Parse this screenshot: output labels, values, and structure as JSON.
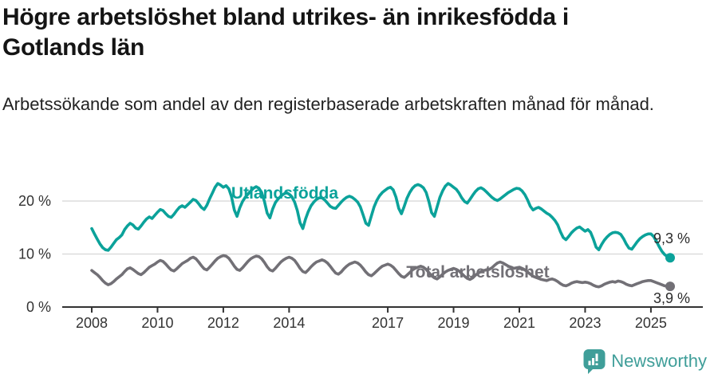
{
  "chart_data": {
    "type": "line",
    "title": "Högre arbetslöshet bland utrikes- än inrikesfödda i Gotlands län",
    "subtitle": "Arbetssökande som andel av den registerbaserade arbetskraften månad för månad.",
    "frequency": "monthly",
    "x_start": "2008-01",
    "x_end": "2025-08",
    "xlim_years": [
      2008,
      2025.67
    ],
    "ylim": [
      0,
      24
    ],
    "grid": "horizontal-light",
    "legend": "inline-series-labels",
    "yticks": [
      {
        "v": 0,
        "label": "0 %"
      },
      {
        "v": 10,
        "label": "10 %"
      },
      {
        "v": 20,
        "label": "20 %"
      }
    ],
    "xticks": [
      {
        "v": 2008,
        "label": "2008"
      },
      {
        "v": 2010,
        "label": "2010"
      },
      {
        "v": 2012,
        "label": "2012"
      },
      {
        "v": 2014,
        "label": "2014"
      },
      {
        "v": 2017,
        "label": "2017"
      },
      {
        "v": 2019,
        "label": "2019"
      },
      {
        "v": 2021,
        "label": "2021"
      },
      {
        "v": 2023,
        "label": "2023"
      },
      {
        "v": 2025,
        "label": "2025"
      }
    ],
    "series": [
      {
        "name": "Utlandsfödda",
        "color": "#0ba29a",
        "end_value": 9.3,
        "end_label": "9,3 %",
        "values": [
          14.8,
          13.8,
          12.8,
          11.9,
          11.2,
          10.8,
          10.7,
          11.3,
          12.0,
          12.7,
          13.1,
          13.6,
          14.6,
          15.3,
          15.8,
          15.5,
          14.9,
          14.7,
          15.3,
          16.0,
          16.6,
          17.0,
          16.7,
          17.3,
          17.9,
          18.4,
          18.2,
          17.6,
          17.1,
          16.9,
          17.5,
          18.2,
          18.8,
          19.1,
          18.8,
          19.3,
          19.8,
          20.3,
          20.1,
          19.5,
          18.8,
          18.4,
          19.2,
          20.4,
          21.5,
          22.6,
          23.3,
          23.0,
          22.6,
          22.9,
          22.3,
          20.8,
          18.3,
          17.1,
          18.7,
          19.9,
          20.7,
          21.3,
          21.9,
          22.4,
          22.7,
          22.4,
          21.6,
          19.9,
          17.7,
          16.8,
          18.5,
          19.7,
          20.4,
          20.9,
          21.3,
          21.6,
          21.3,
          20.8,
          19.8,
          18.2,
          15.9,
          14.8,
          16.6,
          18.0,
          19.1,
          19.8,
          20.3,
          20.6,
          20.6,
          20.2,
          19.6,
          19.0,
          18.7,
          18.6,
          19.2,
          19.8,
          20.3,
          20.7,
          20.9,
          20.7,
          20.3,
          19.8,
          18.9,
          17.4,
          15.8,
          15.4,
          17.2,
          18.9,
          20.1,
          21.0,
          21.6,
          22.0,
          22.4,
          22.6,
          22.1,
          20.7,
          18.6,
          17.6,
          19.0,
          20.5,
          21.6,
          22.4,
          22.9,
          23.1,
          22.9,
          22.5,
          21.6,
          19.9,
          17.8,
          17.1,
          18.9,
          20.7,
          21.9,
          22.8,
          23.3,
          23.0,
          22.6,
          22.2,
          21.5,
          20.6,
          19.9,
          19.6,
          20.3,
          21.1,
          21.8,
          22.3,
          22.5,
          22.2,
          21.7,
          21.2,
          20.7,
          20.3,
          20.1,
          20.4,
          20.8,
          21.2,
          21.6,
          21.9,
          22.2,
          22.4,
          22.3,
          21.9,
          21.2,
          20.2,
          19.0,
          18.3,
          18.6,
          18.8,
          18.5,
          18.1,
          17.7,
          17.4,
          16.9,
          16.3,
          15.5,
          14.2,
          13.1,
          12.7,
          13.3,
          14.0,
          14.5,
          14.9,
          15.1,
          14.7,
          14.3,
          14.6,
          14.1,
          12.8,
          11.3,
          10.8,
          11.8,
          12.6,
          13.2,
          13.7,
          14.0,
          14.1,
          14.0,
          13.7,
          12.9,
          11.9,
          11.1,
          10.9,
          11.6,
          12.3,
          12.9,
          13.3,
          13.6,
          13.8,
          13.8,
          13.3,
          12.4,
          11.4,
          10.5,
          9.9,
          9.5,
          9.3
        ]
      },
      {
        "name": "Total arbetslöshet",
        "color": "#727076",
        "end_value": 3.9,
        "end_label": "3,9 %",
        "values": [
          6.9,
          6.5,
          6.1,
          5.6,
          5.0,
          4.5,
          4.2,
          4.4,
          4.8,
          5.3,
          5.7,
          6.1,
          6.7,
          7.2,
          7.4,
          7.1,
          6.7,
          6.3,
          6.1,
          6.5,
          7.0,
          7.5,
          7.8,
          8.1,
          8.5,
          8.8,
          8.6,
          8.1,
          7.5,
          7.0,
          6.8,
          7.2,
          7.7,
          8.2,
          8.5,
          8.8,
          9.2,
          9.4,
          9.1,
          8.5,
          7.8,
          7.2,
          7.0,
          7.5,
          8.1,
          8.7,
          9.2,
          9.5,
          9.7,
          9.6,
          9.2,
          8.5,
          7.7,
          7.1,
          6.9,
          7.4,
          8.0,
          8.6,
          9.1,
          9.4,
          9.6,
          9.5,
          9.1,
          8.4,
          7.6,
          7.0,
          6.8,
          7.3,
          7.9,
          8.5,
          8.9,
          9.2,
          9.4,
          9.2,
          8.8,
          8.1,
          7.3,
          6.7,
          6.5,
          7.0,
          7.6,
          8.1,
          8.5,
          8.7,
          8.9,
          8.7,
          8.3,
          7.7,
          7.0,
          6.4,
          6.2,
          6.6,
          7.2,
          7.7,
          8.1,
          8.3,
          8.5,
          8.3,
          7.9,
          7.3,
          6.6,
          6.1,
          5.9,
          6.3,
          6.8,
          7.3,
          7.7,
          7.9,
          8.1,
          7.9,
          7.5,
          6.9,
          6.3,
          5.8,
          5.6,
          6.0,
          6.5,
          7.0,
          7.3,
          7.5,
          7.7,
          7.5,
          7.1,
          6.5,
          5.9,
          5.5,
          5.3,
          5.7,
          6.2,
          6.6,
          6.9,
          7.1,
          7.3,
          7.1,
          6.8,
          6.3,
          5.8,
          5.4,
          5.2,
          5.5,
          6.0,
          6.4,
          6.7,
          6.9,
          7.0,
          7.1,
          7.4,
          7.9,
          8.3,
          8.5,
          8.3,
          8.0,
          7.7,
          7.5,
          7.3,
          7.4,
          7.5,
          7.3,
          7.0,
          6.6,
          6.2,
          5.8,
          5.6,
          5.4,
          5.2,
          5.1,
          5.0,
          5.2,
          5.3,
          5.1,
          4.8,
          4.4,
          4.1,
          4.0,
          4.2,
          4.5,
          4.7,
          4.8,
          4.7,
          4.6,
          4.7,
          4.6,
          4.4,
          4.1,
          3.9,
          3.8,
          4.0,
          4.3,
          4.5,
          4.7,
          4.8,
          4.7,
          4.9,
          4.8,
          4.6,
          4.3,
          4.1,
          4.0,
          4.2,
          4.4,
          4.6,
          4.8,
          4.9,
          5.0,
          5.0,
          4.8,
          4.6,
          4.4,
          4.2,
          4.0,
          3.9,
          3.9
        ]
      }
    ]
  },
  "colors": {
    "accent_teal": "#0ba29a",
    "series_gray": "#727076",
    "brand_teal": "#3f9e99",
    "gridline": "#d9d9d9",
    "axis": "#333333"
  },
  "footer": {
    "brand": "Newsworthy"
  }
}
